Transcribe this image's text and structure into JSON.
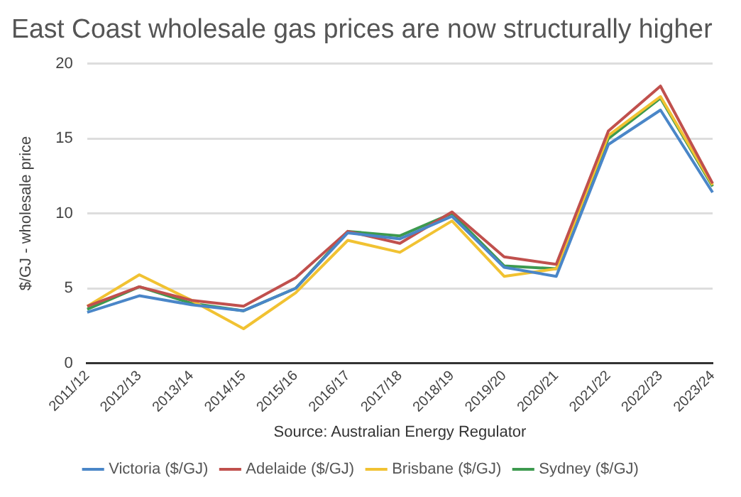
{
  "chart_data": {
    "type": "line",
    "title": "East Coast wholesale gas prices are now structurally higher",
    "ylabel": "$/GJ - wholesale price",
    "annotations": [
      "Source: Australian Energy Regulator"
    ],
    "categories": [
      "2011/12",
      "2012/13",
      "2013/14",
      "2014/15",
      "2015/16",
      "2016/17",
      "2017/18",
      "2018/19",
      "2019/20",
      "2020/21",
      "2021/22",
      "2022/23",
      "2023/24"
    ],
    "series": [
      {
        "name": "Victoria ($/GJ)",
        "color": "#4a86c8",
        "values": [
          3.4,
          4.5,
          3.9,
          3.5,
          5.0,
          8.7,
          8.3,
          9.8,
          6.4,
          5.8,
          14.6,
          16.9,
          11.4
        ]
      },
      {
        "name": "Adelaide ($/GJ)",
        "color": "#c0504d",
        "values": [
          3.8,
          5.1,
          4.2,
          3.8,
          5.7,
          8.8,
          8.0,
          10.1,
          7.1,
          6.6,
          15.5,
          18.5,
          12.0
        ]
      },
      {
        "name": "Brisbane ($/GJ)",
        "color": "#f1c232",
        "values": [
          3.8,
          5.9,
          4.2,
          2.3,
          4.7,
          8.2,
          7.4,
          9.5,
          5.8,
          6.3,
          15.2,
          17.8,
          11.9
        ]
      },
      {
        "name": "Sydney ($/GJ)",
        "color": "#3d9a4f",
        "values": [
          3.6,
          5.1,
          4.0,
          3.5,
          5.0,
          8.8,
          8.5,
          10.0,
          6.5,
          6.3,
          15.0,
          17.7,
          11.8
        ]
      }
    ],
    "ylim": [
      0,
      20
    ],
    "yticks": [
      0,
      5,
      10,
      15,
      20
    ],
    "grid": "y",
    "legend": "bottom",
    "marker": "none",
    "line_style": "solid"
  }
}
